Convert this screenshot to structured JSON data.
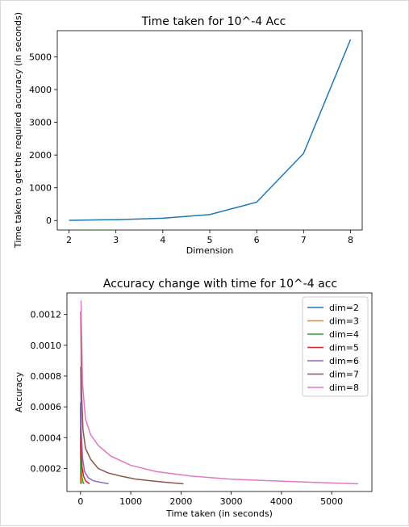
{
  "chart_data": [
    {
      "type": "line",
      "title": "Time taken for 10^-4 Acc",
      "xlabel": "Dimension",
      "ylabel": "Time taken to get the required accuracy (in seconds)",
      "xlim": [
        1.75,
        8.25
      ],
      "ylim": [
        -290,
        5800
      ],
      "xticks": [
        2,
        3,
        4,
        5,
        6,
        7,
        8
      ],
      "yticks": [
        0,
        1000,
        2000,
        3000,
        4000,
        5000
      ],
      "grid": false,
      "series": [
        {
          "color": "#1f77b4",
          "x": [
            2,
            3,
            4,
            5,
            6,
            7,
            8
          ],
          "y": [
            5,
            25,
            70,
            180,
            560,
            2050,
            5530
          ]
        }
      ]
    },
    {
      "type": "line",
      "title": "Accuracy change with time for 10^-4 acc",
      "xlabel": "Time taken (in seconds)",
      "ylabel": "Accuracy",
      "xlim": [
        -270,
        5800
      ],
      "ylim": [
        5e-05,
        0.00134
      ],
      "xticks": [
        0,
        1000,
        2000,
        3000,
        4000,
        5000
      ],
      "yticks": [
        0.0002,
        0.0004,
        0.0006,
        0.0008,
        0.001,
        0.0012
      ],
      "ytick_labels": [
        "0.0002",
        "0.0004",
        "0.0006",
        "0.0008",
        "0.0010",
        "0.0012"
      ],
      "grid": false,
      "legend": "top-right",
      "series": [
        {
          "name": "dim=2",
          "color": "#1f77b4",
          "x": [
            0.2,
            1,
            2,
            3,
            4,
            5
          ],
          "y": [
            0.00045,
            0.00025,
            0.00016,
            0.00013,
            0.00011,
            0.0001
          ]
        },
        {
          "name": "dim=3",
          "color": "#ff7f0e",
          "x": [
            0.5,
            3,
            8,
            15,
            20,
            25
          ],
          "y": [
            0.00047,
            0.00028,
            0.00018,
            0.00013,
            0.00011,
            0.0001
          ]
        },
        {
          "name": "dim=4",
          "color": "#2ca02c",
          "x": [
            1,
            5,
            15,
            30,
            50,
            70
          ],
          "y": [
            0.0006,
            0.00033,
            0.0002,
            0.00014,
            0.00011,
            0.0001
          ]
        },
        {
          "name": "dim=5",
          "color": "#d62728",
          "x": [
            2,
            10,
            30,
            60,
            100,
            140,
            180
          ],
          "y": [
            0.00063,
            0.00035,
            0.00021,
            0.00015,
            0.00012,
            0.00011,
            0.0001
          ]
        },
        {
          "name": "dim=6",
          "color": "#9467bd",
          "x": [
            3,
            15,
            40,
            80,
            150,
            250,
            400,
            560
          ],
          "y": [
            0.00086,
            0.00045,
            0.00027,
            0.00018,
            0.00014,
            0.00012,
            0.00011,
            0.0001
          ]
        },
        {
          "name": "dim=7",
          "color": "#8c564b",
          "x": [
            5,
            20,
            50,
            100,
            200,
            350,
            550,
            800,
            1100,
            1400,
            1700,
            2050
          ],
          "y": [
            0.00122,
            0.0007,
            0.00045,
            0.00033,
            0.00026,
            0.0002,
            0.00017,
            0.00015,
            0.00013,
            0.00012,
            0.00011,
            0.0001
          ]
        },
        {
          "name": "dim=8",
          "color": "#e377c2",
          "x": [
            10,
            40,
            100,
            200,
            350,
            600,
            1000,
            1500,
            2200,
            3000,
            3800,
            4600,
            5530
          ],
          "y": [
            0.00129,
            0.00075,
            0.00052,
            0.00042,
            0.00035,
            0.00028,
            0.00022,
            0.00018,
            0.00015,
            0.00013,
            0.00012,
            0.00011,
            0.0001
          ]
        }
      ]
    }
  ]
}
